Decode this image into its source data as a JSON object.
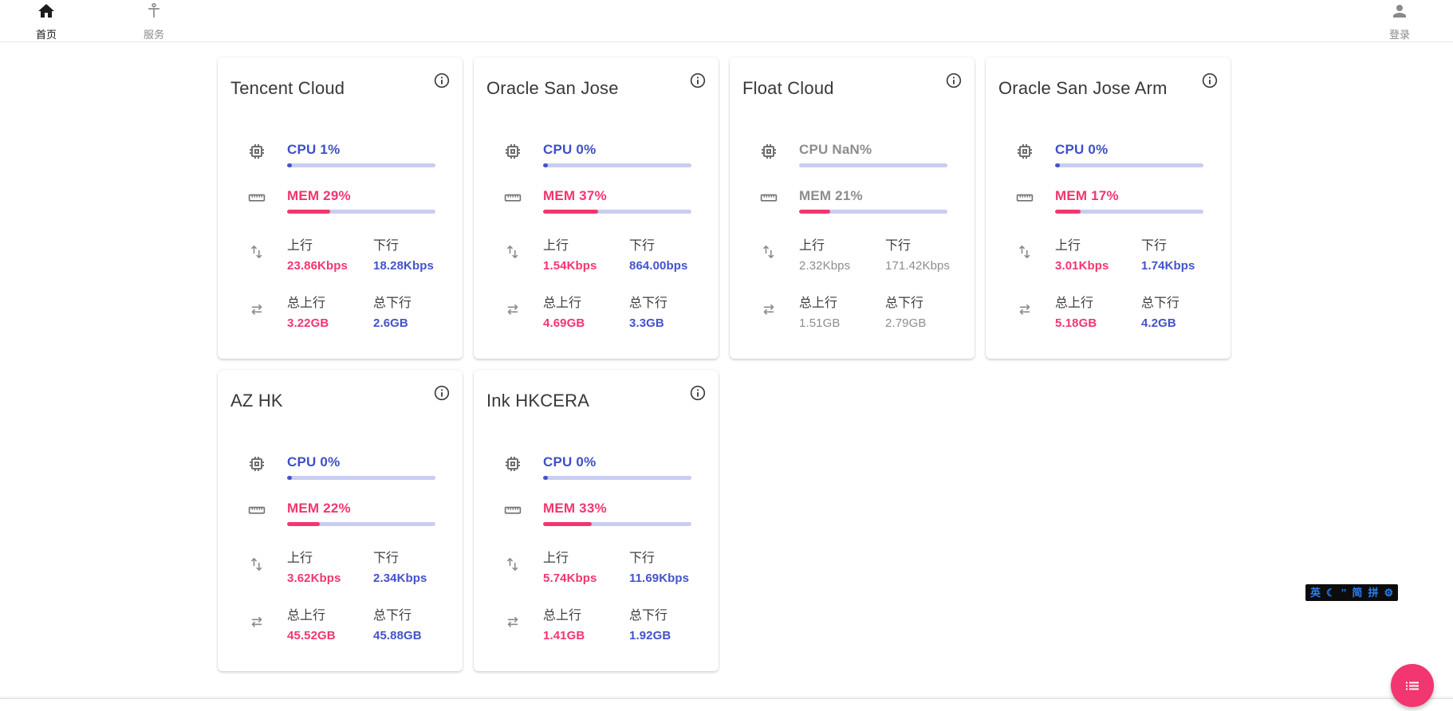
{
  "navbar": {
    "home": {
      "label": "首页"
    },
    "service": {
      "label": "服务"
    },
    "login": {
      "label": "登录"
    }
  },
  "labels": {
    "up": "上行",
    "down": "下行",
    "total_up": "总上行",
    "total_down": "总下行"
  },
  "colors": {
    "accent_blue": "#4353cb",
    "accent_pink": "#f2366f",
    "bar_track": "#c9cdf0",
    "offline_gray": "#8d8d8d"
  },
  "cards": [
    {
      "title": "Tencent Cloud",
      "cpu_text": "CPU 1%",
      "cpu_pct": 1,
      "mem_text": "MEM 29%",
      "mem_pct": 29,
      "offline": false,
      "up": "23.86Kbps",
      "down": "18.28Kbps",
      "total_up": "3.22GB",
      "total_down": "2.6GB"
    },
    {
      "title": "Oracle San Jose",
      "cpu_text": "CPU 0%",
      "cpu_pct": 0,
      "mem_text": "MEM 37%",
      "mem_pct": 37,
      "offline": false,
      "up": "1.54Kbps",
      "down": "864.00bps",
      "total_up": "4.69GB",
      "total_down": "3.3GB"
    },
    {
      "title": "Float Cloud",
      "cpu_text": "CPU NaN%",
      "cpu_pct": null,
      "mem_text": "MEM 21%",
      "mem_pct": 21,
      "offline": true,
      "up": "2.32Kbps",
      "down": "171.42Kbps",
      "total_up": "1.51GB",
      "total_down": "2.79GB"
    },
    {
      "title": "Oracle San Jose Arm",
      "cpu_text": "CPU 0%",
      "cpu_pct": 0,
      "mem_text": "MEM 17%",
      "mem_pct": 17,
      "offline": false,
      "up": "3.01Kbps",
      "down": "1.74Kbps",
      "total_up": "5.18GB",
      "total_down": "4.2GB"
    },
    {
      "title": "AZ HK",
      "cpu_text": "CPU 0%",
      "cpu_pct": 0,
      "mem_text": "MEM 22%",
      "mem_pct": 22,
      "offline": false,
      "up": "3.62Kbps",
      "down": "2.34Kbps",
      "total_up": "45.52GB",
      "total_down": "45.88GB"
    },
    {
      "title": "Ink HKCERA",
      "cpu_text": "CPU 0%",
      "cpu_pct": 0,
      "mem_text": "MEM 33%",
      "mem_pct": 33,
      "offline": false,
      "up": "5.74Kbps",
      "down": "11.69Kbps",
      "total_up": "1.41GB",
      "total_down": "1.92GB"
    }
  ],
  "ime": {
    "items": [
      "英",
      "☾",
      "’’",
      "简",
      "拼",
      "⚙"
    ]
  }
}
